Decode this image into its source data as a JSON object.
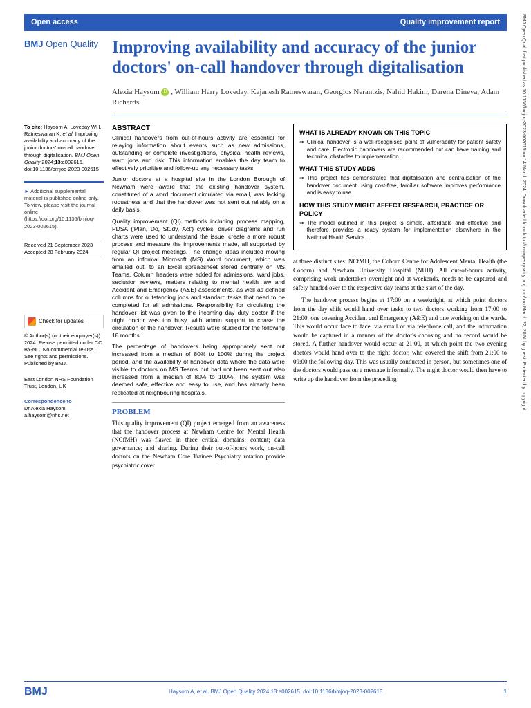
{
  "topbar": {
    "left": "Open access",
    "right": "Quality improvement report"
  },
  "journal": "BMJ Open Quality",
  "title": "Improving availability and accuracy of the junior doctors' on-call handover through digitalisation",
  "authors": "Alexia Haysom    , William Harry Loveday, Kajanesh Ratneswaran, Georgios Nerantzis, Nahid Hakim, Darena Dineva, Adam Richards",
  "cite": {
    "label": "To cite:",
    "text": "Haysom A, Loveday WH, Ratneswaran K, et al. Improving availability and accuracy of the junior doctors' on-call handover through digitalisation. BMJ Open Quality 2024;13:e002615. doi:10.1136/bmjoq-2023-002615"
  },
  "supp": "Additional supplemental material is published online only. To view, please visit the journal online (https://doi.org/10.1136/bmjoq-2023-002615).",
  "dates": {
    "received": "Received 21 September 2023",
    "accepted": "Accepted 20 February 2024"
  },
  "check": "Check for updates",
  "rights": "© Author(s) (or their employer(s)) 2024. Re-use permitted under CC BY-NC. No commercial re-use. See rights and permissions. Published by BMJ.",
  "affil": "East London NHS Foundation Trust, London, UK",
  "corr": {
    "label": "Correspondence to",
    "text": "Dr Alexia Haysom; a.haysom@nhs.net"
  },
  "abstract": {
    "heading": "ABSTRACT",
    "p1": "Clinical handovers from out-of-hours activity are essential for relaying information about events such as new admissions, outstanding or complete investigations, physical health reviews, ward jobs and risk. This information enables the day team to effectively prioritise and follow-up any necessary tasks.",
    "p2": "Junior doctors at a hospital site in the London Borough of Newham were aware that the existing handover system, constituted of a word document circulated via email, was lacking robustness and that the handover was not sent out reliably on a daily basis.",
    "p3": "Quality improvement (QI) methods including process mapping, PDSA ('Plan, Do, Study, Act') cycles, driver diagrams and run charts were used to understand the issue, create a more robust process and measure the improvements made, all supported by regular QI project meetings. The change ideas included moving from an informal Microsoft (MS) Word document, which was emailed out, to an Excel spreadsheet stored centrally on MS Teams. Column headers were added for admissions, ward jobs, seclusion reviews, matters relating to mental health law and Accident and Emergency (A&E) assessments, as well as defined columns for outstanding jobs and standard tasks that need to be completed for all admissions. Responsibility for circulating the handover list was given to the incoming day duty doctor if the night doctor was too busy, with admin support to chase the circulation of the handover. Results were studied for the following 18 months.",
    "p4": "The percentage of handovers being appropriately sent out increased from a median of 80% to 100% during the project period, and the availability of handover data where the data were visible to doctors on MS Teams but had not been sent out also increased from a median of 80% to 100%. The system was deemed safe, effective and easy to use, and has already been replicated at neighbouring hospitals."
  },
  "problem": {
    "heading": "PROBLEM",
    "text": "This quality improvement (QI) project emerged from an awareness that the handover process at Newham Centre for Mental Health (NCfMH) was flawed in three critical domains: content; data governance; and sharing. During their out-of-hours work, on-call doctors on the Newham Core Trainee Psychiatry rotation provide psychiatric cover"
  },
  "infobox": {
    "h1": "WHAT IS ALREADY KNOWN ON THIS TOPIC",
    "t1": "Clinical handover is a well-recognised point of vulnerability for patient safety and care. Electronic handovers are recommended but can have training and technical obstacles to implementation.",
    "h2": "WHAT THIS STUDY ADDS",
    "t2": "This project has demonstrated that digitalisation and centralisation of the handover document using cost-free, familiar software improves performance and is easy to use.",
    "h3": "HOW THIS STUDY MIGHT AFFECT RESEARCH, PRACTICE OR POLICY",
    "t3": "The model outlined in this project is simple, affordable and effective and therefore provides a ready system for implementation elsewhere in the National Health Service."
  },
  "rightbody": {
    "p1": "at three distinct sites: NCfMH, the Coborn Centre for Adolescent Mental Health (the Coborn) and Newham University Hospital (NUH). All out-of-hours activity, comprising work undertaken overnight and at weekends, needs to be captured and safely handed over to the respective day teams at the start of the day.",
    "p2": "The handover process begins at 17:00 on a weeknight, at which point doctors from the day shift would hand over tasks to two doctors working from 17:00 to 21:00, one covering Accident and Emergency (A&E) and one working on the wards. This would occur face to face, via email or via telephone call, and the information would be captured in a manner of the doctor's choosing and no record would be stored. A further handover would occur at 21:00, at which point the two evening doctors would hand over to the night doctor, who covered the shift from 21:00 to 09:00 the following day. This was usually conducted in person, but sometimes one of the doctors would pass on a message informally. The night doctor would then have to write up the handover from the preceding"
  },
  "footer": {
    "logo": "BMJ",
    "cite": "Haysom A, et al. BMJ Open Quality 2024;13:e002615. doi:10.1136/bmjoq-2023-002615",
    "page": "1"
  },
  "sidetext": "BMJ Open Qual: first published as 10.1136/bmjoq-2023-002615 on 14 March 2024. Downloaded from http://bmjopenquality.bmj.com/ on March 22, 2024 by guest. Protected by copyright."
}
